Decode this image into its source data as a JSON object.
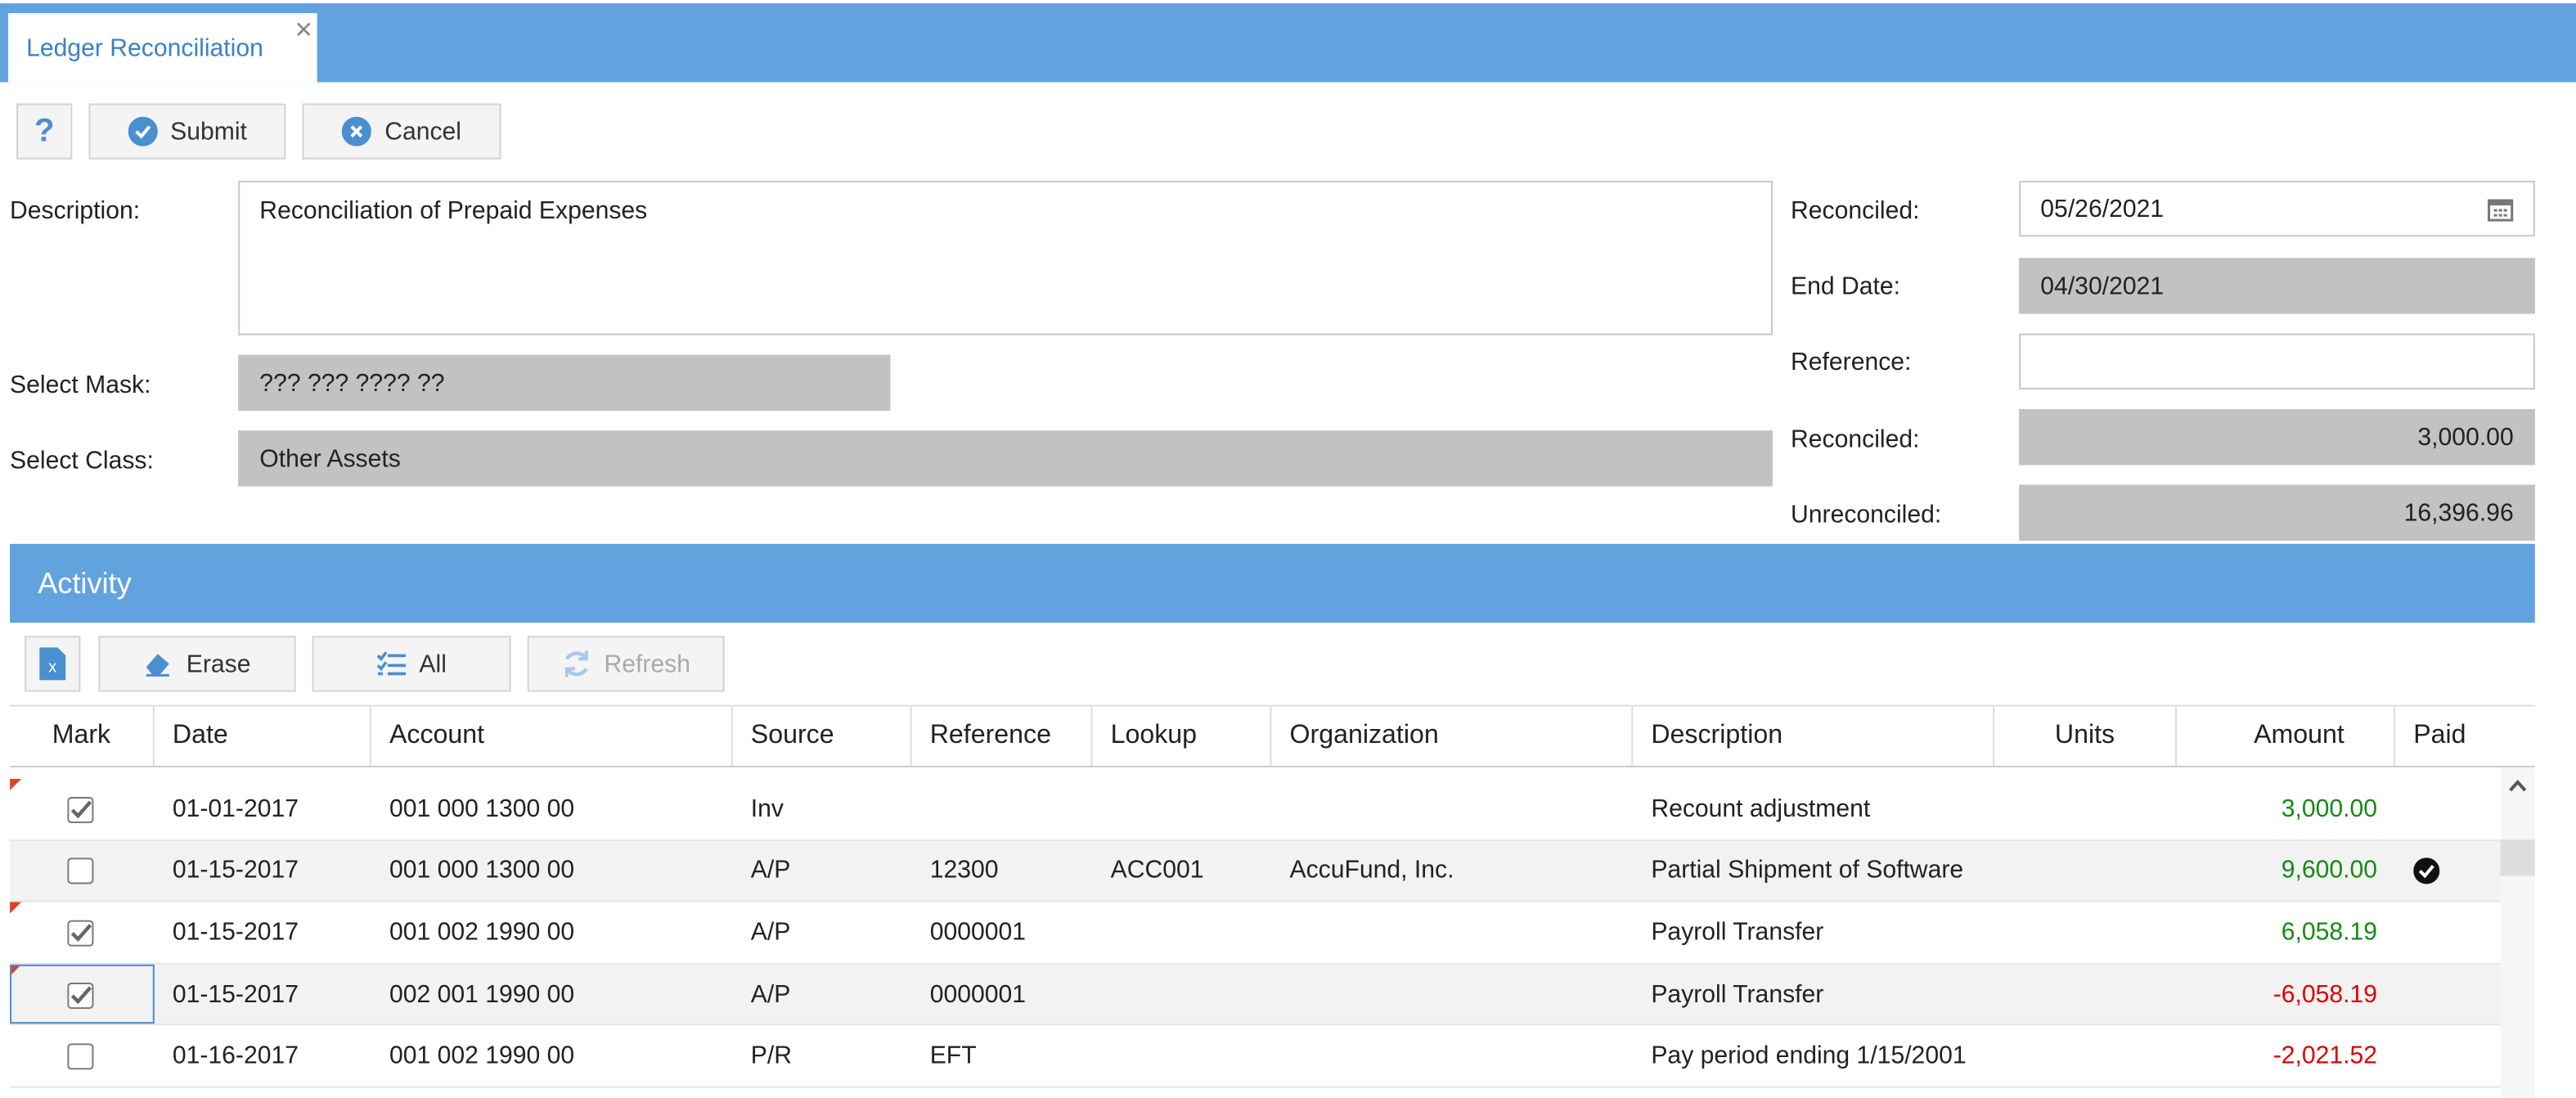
{
  "tab": {
    "title": "Ledger Reconciliation"
  },
  "toolbar": {
    "help": "?",
    "submit": "Submit",
    "cancel": "Cancel"
  },
  "form": {
    "description": {
      "label": "Description:",
      "value": "Reconciliation of Prepaid Expenses"
    },
    "select_mask": {
      "label": "Select Mask:",
      "value": "??? ??? ???? ??"
    },
    "select_class": {
      "label": "Select Class:",
      "value": "Other Assets"
    },
    "reconciled_date": {
      "label": "Reconciled:",
      "value": "05/26/2021"
    },
    "end_date": {
      "label": "End Date:",
      "value": "04/30/2021"
    },
    "reference": {
      "label": "Reference:"
    },
    "reconciled_amount": {
      "label": "Reconciled:",
      "value": "3,000.00"
    },
    "unreconciled_amount": {
      "label": "Unreconciled:",
      "value": "16,396.96"
    }
  },
  "activity": {
    "title": "Activity",
    "erase": "Erase",
    "all": "All",
    "refresh": "Refresh"
  },
  "table": {
    "columns": [
      "Mark",
      "Date",
      "Account",
      "Source",
      "Reference",
      "Lookup",
      "Organization",
      "Description",
      "Units",
      "Amount",
      "Paid"
    ],
    "rows": [
      {
        "marked": true,
        "flagged": true,
        "date": "01-01-2017",
        "account": "001 000 1300 00",
        "source": "Inv",
        "description": "Recount adjustment",
        "amount": "3,000.00",
        "paid": false
      },
      {
        "marked": false,
        "flagged": false,
        "date": "01-15-2017",
        "account": "001 000 1300 00",
        "source": "A/P",
        "reference": "12300",
        "lookup": "ACC001",
        "organization": "AccuFund, Inc.",
        "description": "Partial Shipment of Software",
        "amount": "9,600.00",
        "paid": true
      },
      {
        "marked": true,
        "flagged": true,
        "date": "01-15-2017",
        "account": "001 002 1990 00",
        "source": "A/P",
        "reference": "0000001",
        "description": "Payroll Transfer",
        "amount": "6,058.19",
        "paid": false
      },
      {
        "marked": true,
        "flagged": true,
        "date": "01-15-2017",
        "account": "002 001 1990 00",
        "source": "A/P",
        "reference": "0000001",
        "description": "Payroll Transfer",
        "amount": "-6,058.19",
        "paid": false
      },
      {
        "marked": false,
        "flagged": false,
        "date": "01-16-2017",
        "account": "001 002 1990 00",
        "source": "P/R",
        "reference": "EFT",
        "description": "Pay period ending 1/15/2001",
        "amount": "-2,021.52",
        "paid": false
      }
    ]
  }
}
